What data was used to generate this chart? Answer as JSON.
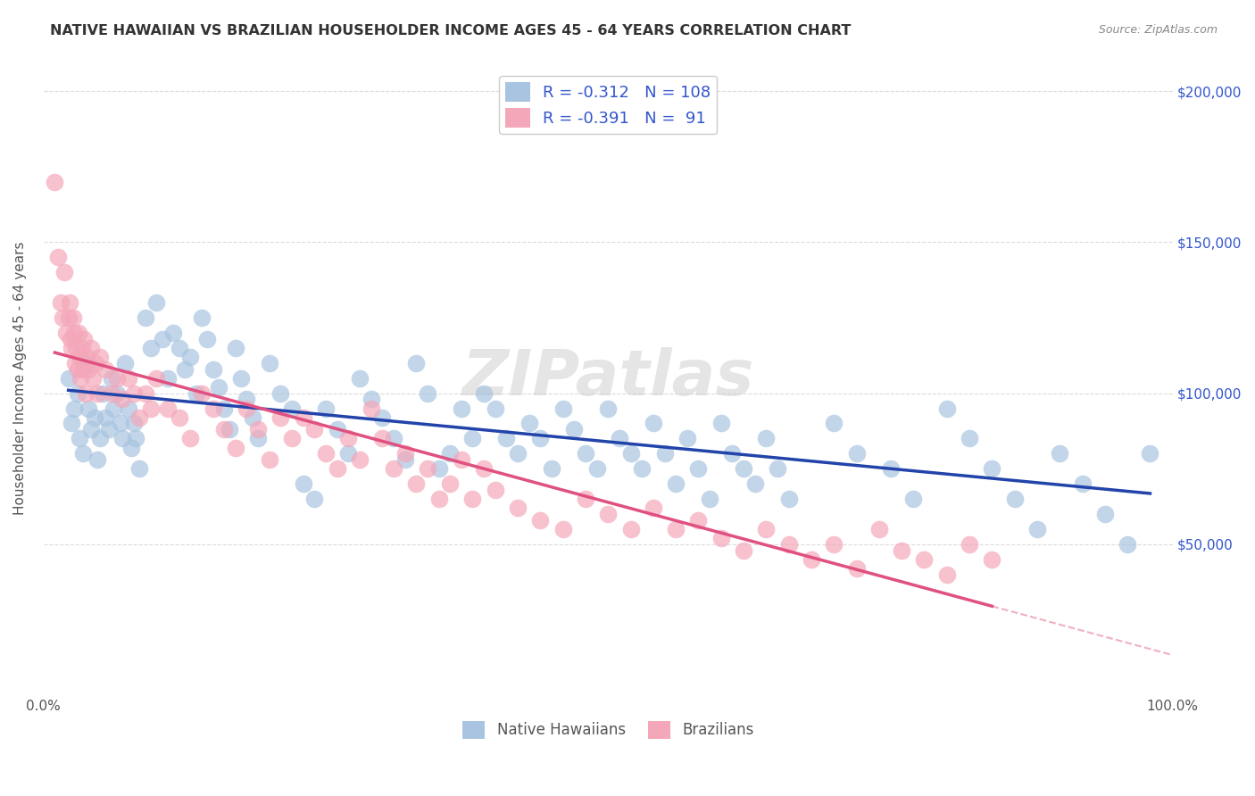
{
  "title": "NATIVE HAWAIIAN VS BRAZILIAN HOUSEHOLDER INCOME AGES 45 - 64 YEARS CORRELATION CHART",
  "source": "Source: ZipAtlas.com",
  "ylabel": "Householder Income Ages 45 - 64 years",
  "xlim": [
    0.0,
    1.0
  ],
  "ylim": [
    0,
    210000
  ],
  "xticks": [
    0.0,
    0.1,
    0.2,
    0.3,
    0.4,
    0.5,
    0.6,
    0.7,
    0.8,
    0.9,
    1.0
  ],
  "xticklabels": [
    "0.0%",
    "",
    "",
    "",
    "",
    "",
    "",
    "",
    "",
    "",
    "100.0%"
  ],
  "yticks": [
    0,
    50000,
    100000,
    150000,
    200000
  ],
  "yticklabels": [
    "",
    "$50,000",
    "$100,000",
    "$150,000",
    "$200,000"
  ],
  "blue_R": -0.312,
  "blue_N": 108,
  "pink_R": -0.391,
  "pink_N": 91,
  "blue_color": "#a8c4e0",
  "pink_color": "#f4a7b9",
  "blue_line_color": "#2244aa",
  "pink_line_color": "#e05080",
  "pink_dash_color": "#f0b0c0",
  "legend_text_color": "#3355cc",
  "watermark": "ZIPatlas",
  "blue_x": [
    0.022,
    0.025,
    0.027,
    0.03,
    0.032,
    0.035,
    0.038,
    0.04,
    0.042,
    0.045,
    0.048,
    0.05,
    0.052,
    0.055,
    0.058,
    0.06,
    0.062,
    0.065,
    0.068,
    0.07,
    0.072,
    0.075,
    0.078,
    0.08,
    0.082,
    0.085,
    0.09,
    0.095,
    0.1,
    0.105,
    0.11,
    0.115,
    0.12,
    0.125,
    0.13,
    0.135,
    0.14,
    0.145,
    0.15,
    0.155,
    0.16,
    0.165,
    0.17,
    0.175,
    0.18,
    0.185,
    0.19,
    0.2,
    0.21,
    0.22,
    0.23,
    0.24,
    0.25,
    0.26,
    0.27,
    0.28,
    0.29,
    0.3,
    0.31,
    0.32,
    0.33,
    0.34,
    0.35,
    0.36,
    0.37,
    0.38,
    0.39,
    0.4,
    0.41,
    0.42,
    0.43,
    0.44,
    0.45,
    0.46,
    0.47,
    0.48,
    0.49,
    0.5,
    0.51,
    0.52,
    0.53,
    0.54,
    0.55,
    0.56,
    0.57,
    0.58,
    0.59,
    0.6,
    0.61,
    0.62,
    0.63,
    0.64,
    0.65,
    0.66,
    0.7,
    0.72,
    0.75,
    0.77,
    0.8,
    0.82,
    0.84,
    0.86,
    0.88,
    0.9,
    0.92,
    0.94,
    0.96,
    0.98
  ],
  "blue_y": [
    105000,
    90000,
    95000,
    100000,
    85000,
    80000,
    110000,
    95000,
    88000,
    92000,
    78000,
    85000,
    100000,
    92000,
    88000,
    105000,
    95000,
    100000,
    90000,
    85000,
    110000,
    95000,
    82000,
    90000,
    85000,
    75000,
    125000,
    115000,
    130000,
    118000,
    105000,
    120000,
    115000,
    108000,
    112000,
    100000,
    125000,
    118000,
    108000,
    102000,
    95000,
    88000,
    115000,
    105000,
    98000,
    92000,
    85000,
    110000,
    100000,
    95000,
    70000,
    65000,
    95000,
    88000,
    80000,
    105000,
    98000,
    92000,
    85000,
    78000,
    110000,
    100000,
    75000,
    80000,
    95000,
    85000,
    100000,
    95000,
    85000,
    80000,
    90000,
    85000,
    75000,
    95000,
    88000,
    80000,
    75000,
    95000,
    85000,
    80000,
    75000,
    90000,
    80000,
    70000,
    85000,
    75000,
    65000,
    90000,
    80000,
    75000,
    70000,
    85000,
    75000,
    65000,
    90000,
    80000,
    75000,
    65000,
    95000,
    85000,
    75000,
    65000,
    55000,
    80000,
    70000,
    60000,
    50000,
    80000
  ],
  "pink_x": [
    0.01,
    0.013,
    0.015,
    0.017,
    0.018,
    0.02,
    0.022,
    0.023,
    0.024,
    0.025,
    0.026,
    0.027,
    0.028,
    0.029,
    0.03,
    0.031,
    0.032,
    0.033,
    0.034,
    0.035,
    0.036,
    0.037,
    0.038,
    0.04,
    0.042,
    0.044,
    0.046,
    0.048,
    0.05,
    0.055,
    0.06,
    0.065,
    0.07,
    0.075,
    0.08,
    0.085,
    0.09,
    0.095,
    0.1,
    0.11,
    0.12,
    0.13,
    0.14,
    0.15,
    0.16,
    0.17,
    0.18,
    0.19,
    0.2,
    0.21,
    0.22,
    0.23,
    0.24,
    0.25,
    0.26,
    0.27,
    0.28,
    0.29,
    0.3,
    0.31,
    0.32,
    0.33,
    0.34,
    0.35,
    0.36,
    0.37,
    0.38,
    0.39,
    0.4,
    0.42,
    0.44,
    0.46,
    0.48,
    0.5,
    0.52,
    0.54,
    0.56,
    0.58,
    0.6,
    0.62,
    0.64,
    0.66,
    0.68,
    0.7,
    0.72,
    0.74,
    0.76,
    0.78,
    0.8,
    0.82,
    0.84
  ],
  "pink_y": [
    170000,
    145000,
    130000,
    125000,
    140000,
    120000,
    125000,
    130000,
    118000,
    115000,
    125000,
    120000,
    110000,
    115000,
    108000,
    120000,
    112000,
    105000,
    115000,
    108000,
    118000,
    100000,
    112000,
    108000,
    115000,
    105000,
    110000,
    100000,
    112000,
    108000,
    100000,
    105000,
    98000,
    105000,
    100000,
    92000,
    100000,
    95000,
    105000,
    95000,
    92000,
    85000,
    100000,
    95000,
    88000,
    82000,
    95000,
    88000,
    78000,
    92000,
    85000,
    92000,
    88000,
    80000,
    75000,
    85000,
    78000,
    95000,
    85000,
    75000,
    80000,
    70000,
    75000,
    65000,
    70000,
    78000,
    65000,
    75000,
    68000,
    62000,
    58000,
    55000,
    65000,
    60000,
    55000,
    62000,
    55000,
    58000,
    52000,
    48000,
    55000,
    50000,
    45000,
    50000,
    42000,
    55000,
    48000,
    45000,
    40000,
    50000,
    45000
  ]
}
